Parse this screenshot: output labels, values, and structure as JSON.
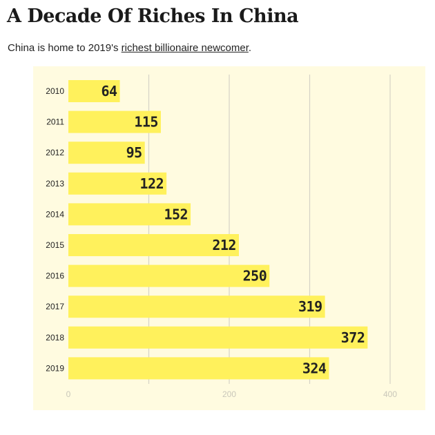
{
  "header": {
    "title": "A Decade Of Riches In China",
    "subtitle_before": "China is home to 2019's ",
    "subtitle_link": "richest billionaire newcomer",
    "subtitle_after": "."
  },
  "colors": {
    "background": "#fffbe0",
    "bar": "#fff15c",
    "grid": "#d5d3c6",
    "tick_text": "#222222",
    "axis_text": "#c9c7ba"
  },
  "chart_data": {
    "type": "bar",
    "orientation": "horizontal",
    "categories": [
      "2010",
      "2011",
      "2012",
      "2013",
      "2014",
      "2015",
      "2016",
      "2017",
      "2018",
      "2019"
    ],
    "values": [
      64,
      115,
      95,
      122,
      152,
      212,
      250,
      319,
      372,
      324
    ],
    "data_labels": [
      "64",
      "115",
      "95",
      "122",
      "152",
      "212",
      "250",
      "319",
      "372",
      "324"
    ],
    "xlim": [
      0,
      400
    ],
    "xticks": [
      0,
      200,
      400
    ],
    "xtick_labels": [
      "0",
      "200",
      "400"
    ],
    "grid": true,
    "title": "",
    "xlabel": "",
    "ylabel": ""
  }
}
